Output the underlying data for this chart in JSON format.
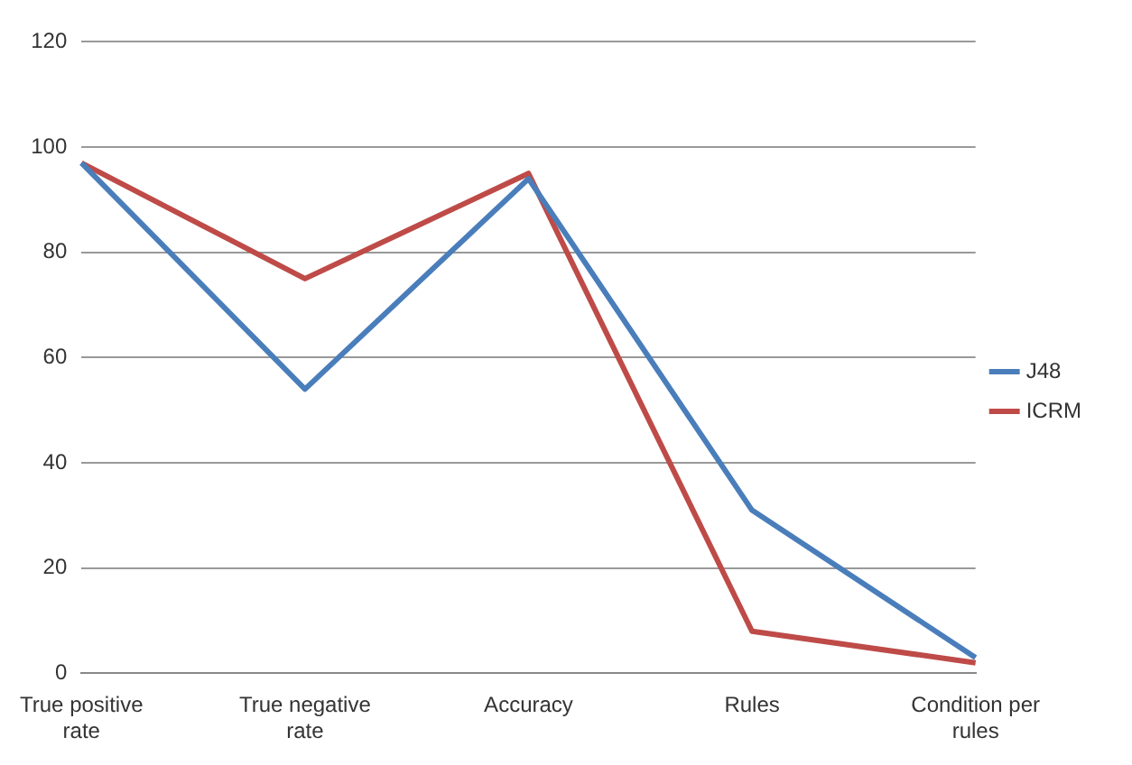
{
  "chart_data": {
    "type": "line",
    "categories": [
      "True positive rate",
      "True negative rate",
      "Accuracy",
      "Rules",
      "Condition per rules"
    ],
    "series": [
      {
        "name": "J48",
        "color": "#4a7ebb",
        "values": [
          97,
          54,
          94,
          31,
          3
        ]
      },
      {
        "name": "ICRM",
        "color": "#be4b48",
        "values": [
          97,
          75,
          95,
          8,
          2
        ]
      }
    ],
    "ylim": [
      0,
      120
    ],
    "yticks": [
      0,
      20,
      40,
      60,
      80,
      100,
      120
    ],
    "grid": "y",
    "legend": "right",
    "marker": "none",
    "line_style": "solid"
  }
}
